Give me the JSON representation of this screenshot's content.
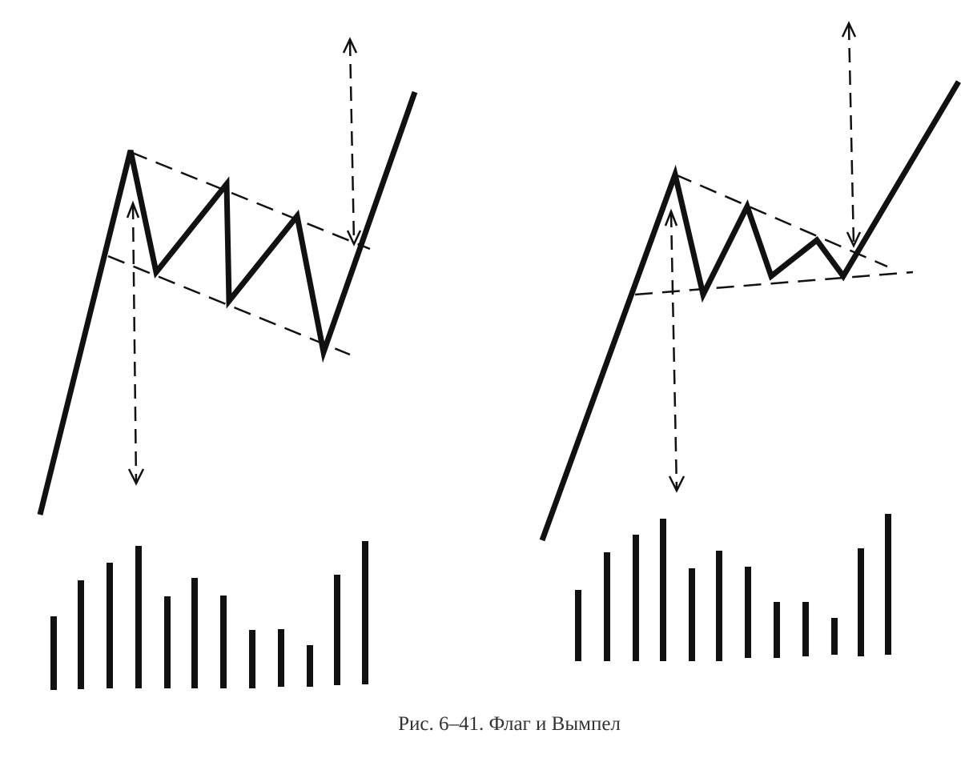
{
  "caption": "Рис. 6–41. Флаг и Вымпел"
}
